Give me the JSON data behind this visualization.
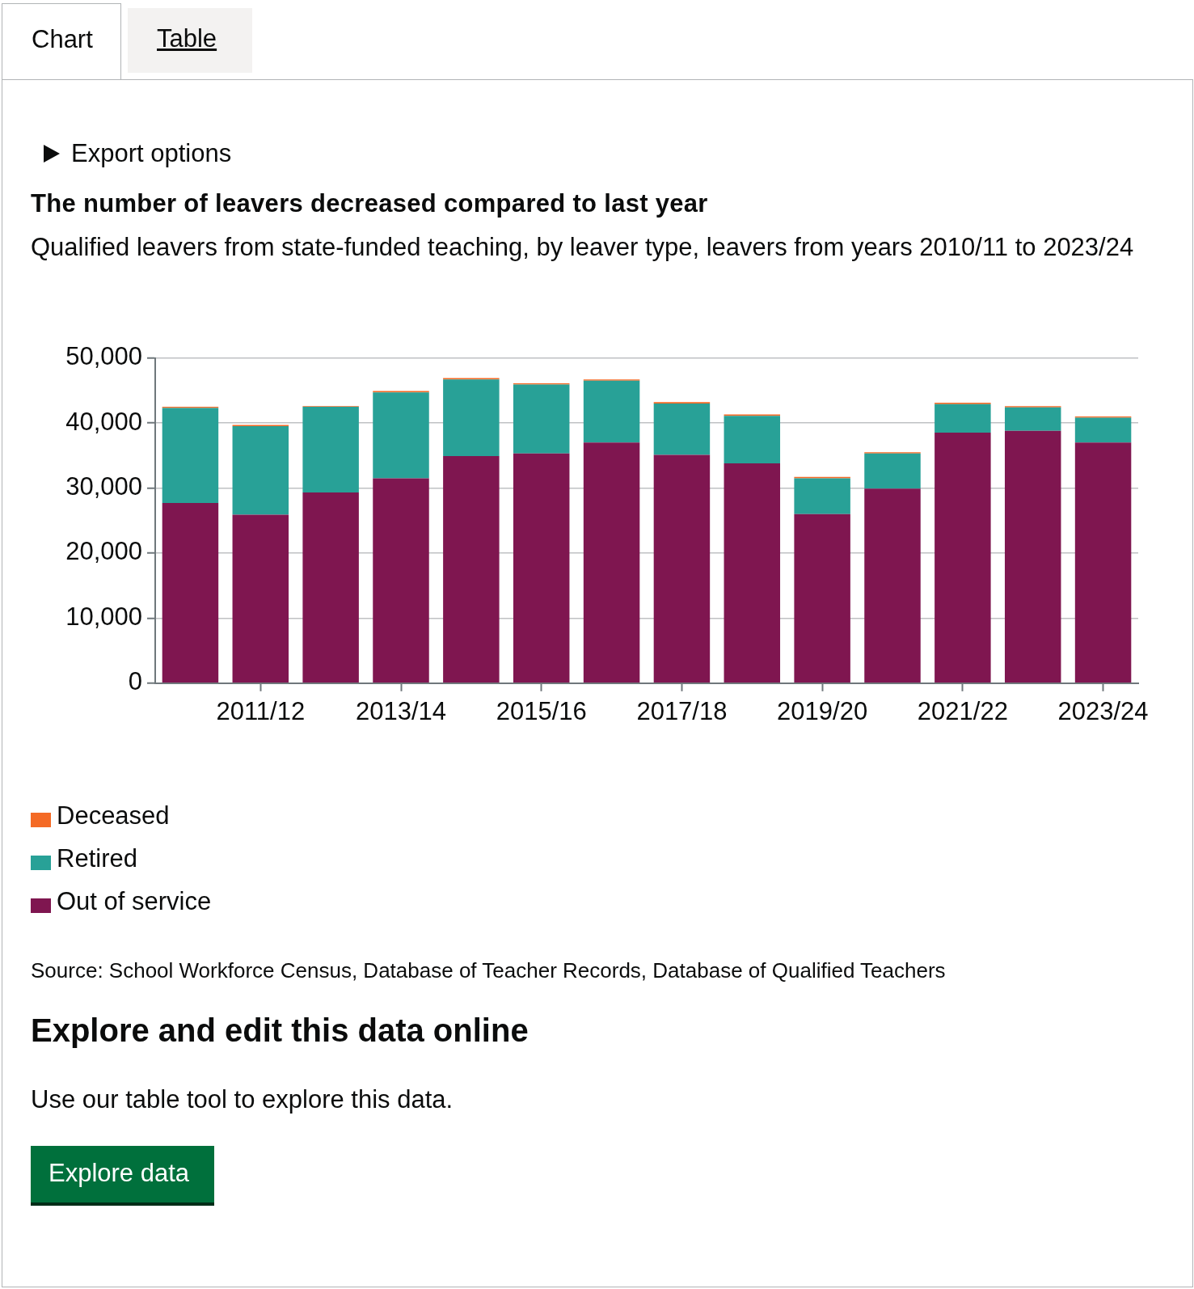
{
  "chart_data": {
    "type": "bar",
    "title": "The number of leavers decreased compared to last year",
    "subtitle": "Qualified leavers from state-funded teaching, by leaver type, leavers from years 2010/11 to 2023/24",
    "categories": [
      null,
      "2011/12",
      null,
      "2013/14",
      null,
      "2015/16",
      null,
      "2017/18",
      null,
      "2019/20",
      null,
      "2021/22",
      null,
      "2023/24"
    ],
    "stacked": true,
    "series": [
      {
        "name": "Out of service",
        "color": "#7f1650",
        "values": [
          27700,
          25900,
          29300,
          31500,
          34900,
          35300,
          37000,
          35100,
          33800,
          26000,
          29900,
          38500,
          38800,
          37000
        ]
      },
      {
        "name": "Retired",
        "color": "#28a197",
        "values": [
          14600,
          13600,
          13200,
          13200,
          11800,
          10600,
          9500,
          7900,
          7300,
          5500,
          5400,
          4400,
          3600,
          3800
        ]
      },
      {
        "name": "Deceased",
        "color": "#f46a25",
        "values": [
          200,
          200,
          100,
          200,
          200,
          200,
          200,
          200,
          200,
          200,
          200,
          200,
          200,
          200
        ]
      }
    ],
    "ylim": [
      0,
      50000
    ],
    "yticks": [
      {
        "value": 0,
        "label": "0"
      },
      {
        "value": 10000,
        "label": "10,000"
      },
      {
        "value": 20000,
        "label": "20,000"
      },
      {
        "value": 30000,
        "label": "30,000"
      },
      {
        "value": 40000,
        "label": "40,000"
      },
      {
        "value": 50000,
        "label": "50,000"
      }
    ],
    "grid": "y",
    "legend": "bottom left",
    "annotations": [
      "Chart",
      "Table",
      "Export options",
      "Source: School Workforce Census, Database of Teacher Records, Database of Qualified Teachers",
      "Explore and edit this data online",
      "Use our table tool to explore this data.",
      "Explore data"
    ]
  }
}
